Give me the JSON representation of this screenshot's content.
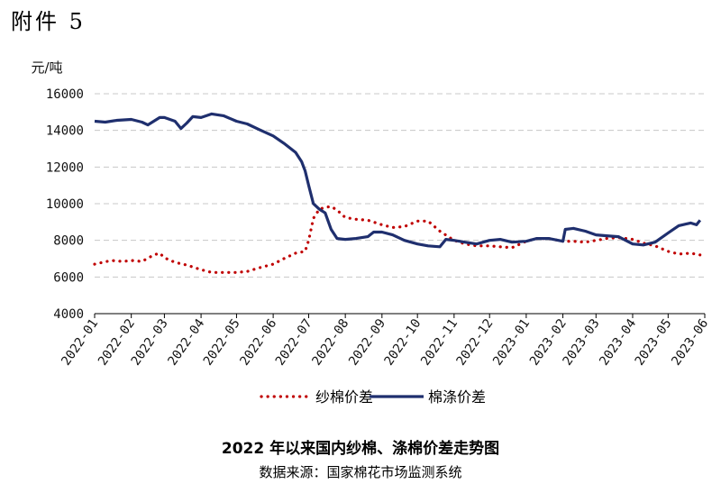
{
  "attachment_label": "附件 5",
  "chart_data": {
    "type": "line",
    "title": "2022 年以来国内纱棉、涤棉价差走势图",
    "source": "数据来源：国家棉花市场监测系统",
    "ylabel": "元/吨",
    "xlabel": "",
    "ylim": [
      4000,
      16000
    ],
    "yticks": [
      "4000",
      "6000",
      "8000",
      "10000",
      "12000",
      "14000",
      "16000"
    ],
    "xlim": [
      "2022-01",
      "2023-06"
    ],
    "xticks": [
      "2022-01",
      "2022-02",
      "2022-03",
      "2022-04",
      "2022-05",
      "2022-06",
      "2022-07",
      "2022-08",
      "2022-09",
      "2022-10",
      "2022-11",
      "2022-12",
      "2023-01",
      "2023-02",
      "2023-03",
      "2023-04",
      "2023-05",
      "2023-06"
    ],
    "grid": "horizontal dashed",
    "legend_position": "bottom",
    "series": [
      {
        "name": "纱棉价差",
        "style": "dotted",
        "color": "#c00000",
        "points": [
          [
            "2022-01-01",
            6700
          ],
          [
            "2022-01-15",
            6900
          ],
          [
            "2022-01-25",
            6850
          ],
          [
            "2022-02-01",
            6900
          ],
          [
            "2022-02-10",
            6850
          ],
          [
            "2022-02-20",
            7200
          ],
          [
            "2022-02-25",
            7300
          ],
          [
            "2022-03-01",
            7050
          ],
          [
            "2022-03-10",
            6800
          ],
          [
            "2022-03-20",
            6650
          ],
          [
            "2022-04-01",
            6400
          ],
          [
            "2022-04-10",
            6250
          ],
          [
            "2022-04-20",
            6250
          ],
          [
            "2022-05-01",
            6250
          ],
          [
            "2022-05-10",
            6300
          ],
          [
            "2022-05-20",
            6500
          ],
          [
            "2022-06-01",
            6700
          ],
          [
            "2022-06-10",
            7000
          ],
          [
            "2022-06-20",
            7300
          ],
          [
            "2022-06-28",
            7400
          ],
          [
            "2022-07-01",
            8000
          ],
          [
            "2022-07-05",
            9200
          ],
          [
            "2022-07-10",
            9700
          ],
          [
            "2022-07-15",
            9800
          ],
          [
            "2022-07-20",
            9850
          ],
          [
            "2022-07-25",
            9650
          ],
          [
            "2022-08-01",
            9250
          ],
          [
            "2022-08-10",
            9150
          ],
          [
            "2022-08-20",
            9100
          ],
          [
            "2022-09-01",
            8850
          ],
          [
            "2022-09-10",
            8700
          ],
          [
            "2022-09-20",
            8750
          ],
          [
            "2022-10-01",
            9050
          ],
          [
            "2022-10-10",
            9050
          ],
          [
            "2022-10-20",
            8500
          ],
          [
            "2022-11-01",
            8000
          ],
          [
            "2022-11-10",
            7800
          ],
          [
            "2022-11-20",
            7700
          ],
          [
            "2022-12-01",
            7700
          ],
          [
            "2022-12-10",
            7650
          ],
          [
            "2022-12-20",
            7600
          ],
          [
            "2023-01-01",
            7950
          ],
          [
            "2023-01-10",
            8100
          ],
          [
            "2023-01-20",
            8100
          ],
          [
            "2023-02-01",
            7950
          ],
          [
            "2023-02-10",
            7950
          ],
          [
            "2023-02-20",
            7900
          ],
          [
            "2023-03-01",
            8000
          ],
          [
            "2023-03-10",
            8100
          ],
          [
            "2023-03-20",
            8150
          ],
          [
            "2023-04-01",
            8050
          ],
          [
            "2023-04-10",
            7850
          ],
          [
            "2023-04-20",
            7700
          ],
          [
            "2023-05-01",
            7400
          ],
          [
            "2023-05-10",
            7250
          ],
          [
            "2023-05-20",
            7300
          ],
          [
            "2023-05-28",
            7200
          ]
        ]
      },
      {
        "name": "棉涤价差",
        "style": "solid",
        "color": "#1f2f6e",
        "points": [
          [
            "2022-01-01",
            14500
          ],
          [
            "2022-01-10",
            14450
          ],
          [
            "2022-01-20",
            14550
          ],
          [
            "2022-02-01",
            14600
          ],
          [
            "2022-02-10",
            14450
          ],
          [
            "2022-02-15",
            14300
          ],
          [
            "2022-02-25",
            14700
          ],
          [
            "2022-03-01",
            14700
          ],
          [
            "2022-03-10",
            14500
          ],
          [
            "2022-03-15",
            14100
          ],
          [
            "2022-03-20",
            14400
          ],
          [
            "2022-03-25",
            14750
          ],
          [
            "2022-04-01",
            14700
          ],
          [
            "2022-04-10",
            14900
          ],
          [
            "2022-04-20",
            14800
          ],
          [
            "2022-05-01",
            14500
          ],
          [
            "2022-05-10",
            14350
          ],
          [
            "2022-05-20",
            14050
          ],
          [
            "2022-06-01",
            13700
          ],
          [
            "2022-06-10",
            13300
          ],
          [
            "2022-06-20",
            12800
          ],
          [
            "2022-06-25",
            12300
          ],
          [
            "2022-06-28",
            11800
          ],
          [
            "2022-07-01",
            11000
          ],
          [
            "2022-07-05",
            10000
          ],
          [
            "2022-07-10",
            9700
          ],
          [
            "2022-07-15",
            9500
          ],
          [
            "2022-07-20",
            8600
          ],
          [
            "2022-07-25",
            8100
          ],
          [
            "2022-08-01",
            8050
          ],
          [
            "2022-08-10",
            8100
          ],
          [
            "2022-08-20",
            8200
          ],
          [
            "2022-08-25",
            8450
          ],
          [
            "2022-09-01",
            8450
          ],
          [
            "2022-09-10",
            8300
          ],
          [
            "2022-09-20",
            8000
          ],
          [
            "2022-10-01",
            7800
          ],
          [
            "2022-10-10",
            7700
          ],
          [
            "2022-10-20",
            7650
          ],
          [
            "2022-10-25",
            8050
          ],
          [
            "2022-11-01",
            8000
          ],
          [
            "2022-11-10",
            7900
          ],
          [
            "2022-11-20",
            7800
          ],
          [
            "2022-12-01",
            8000
          ],
          [
            "2022-12-10",
            8050
          ],
          [
            "2022-12-20",
            7900
          ],
          [
            "2023-01-01",
            7950
          ],
          [
            "2023-01-10",
            8100
          ],
          [
            "2023-01-20",
            8100
          ],
          [
            "2023-02-01",
            7950
          ],
          [
            "2023-02-03",
            8600
          ],
          [
            "2023-02-10",
            8650
          ],
          [
            "2023-02-20",
            8500
          ],
          [
            "2023-03-01",
            8300
          ],
          [
            "2023-03-10",
            8250
          ],
          [
            "2023-03-20",
            8200
          ],
          [
            "2023-04-01",
            7800
          ],
          [
            "2023-04-10",
            7750
          ],
          [
            "2023-04-20",
            7900
          ],
          [
            "2023-05-01",
            8400
          ],
          [
            "2023-05-10",
            8800
          ],
          [
            "2023-05-20",
            8950
          ],
          [
            "2023-05-25",
            8850
          ],
          [
            "2023-05-28",
            9100
          ]
        ]
      }
    ]
  }
}
